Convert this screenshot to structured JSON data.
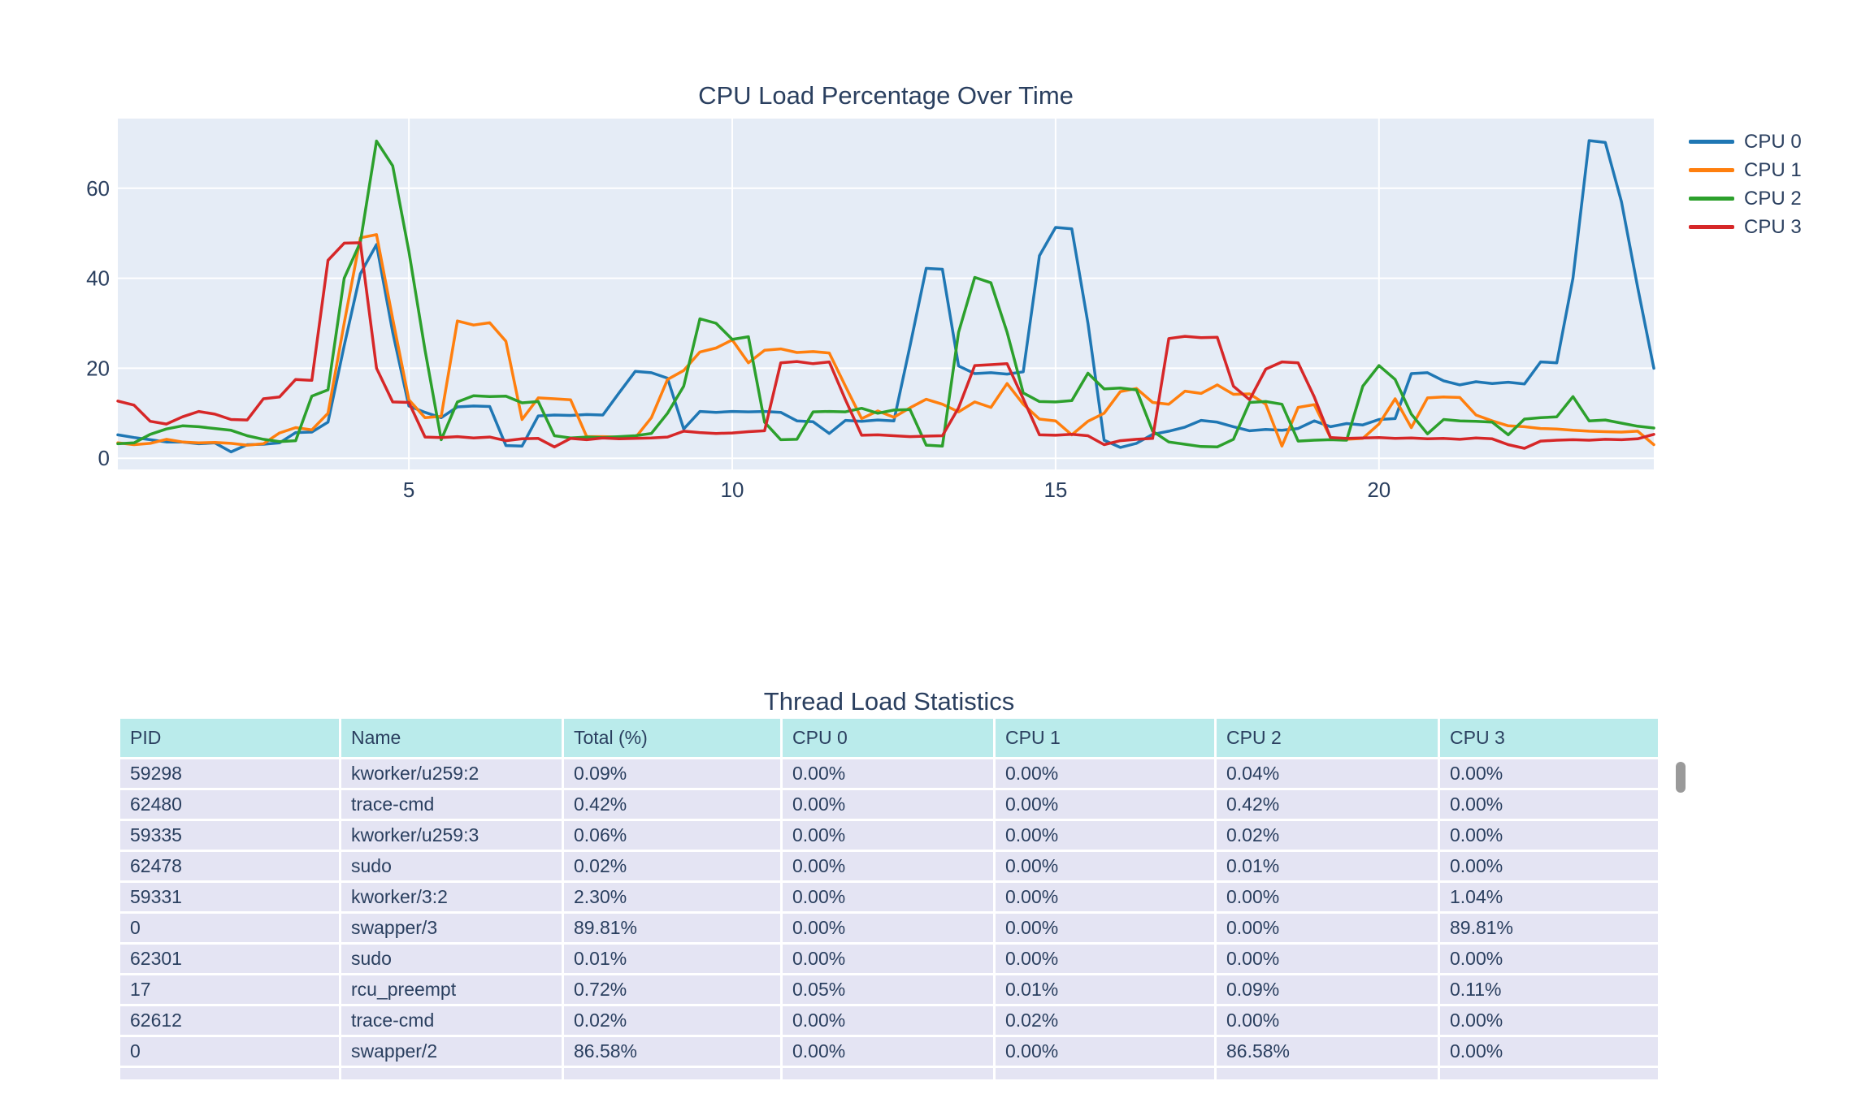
{
  "colors": {
    "text": "#2a3f5f",
    "plot_bg": "#e5ecf6",
    "grid": "#ffffff",
    "table_header_bg": "#baebeb",
    "table_cell_bg": "#e4e4f3",
    "scrollbar": "#9a9a9a",
    "cpu0": "#1f77b4",
    "cpu1": "#ff7f0e",
    "cpu2": "#2ca02c",
    "cpu3": "#d62728"
  },
  "chart_data": [
    {
      "type": "line",
      "title": "CPU Load Percentage Over Time",
      "xlabel": "",
      "ylabel": "",
      "xlim": [
        0.5,
        24.25
      ],
      "ylim": [
        -2.5,
        75.5
      ],
      "xticks": [
        "5",
        "10",
        "15",
        "20"
      ],
      "xtick_values": [
        5,
        10,
        15,
        20
      ],
      "yticks": [
        "0",
        "20",
        "40",
        "60"
      ],
      "ytick_values": [
        0,
        20,
        40,
        60
      ],
      "grid": true,
      "legend_position": "right",
      "x": [
        0.5,
        0.75,
        1,
        1.25,
        1.5,
        1.75,
        2,
        2.25,
        2.5,
        2.75,
        3,
        3.25,
        3.5,
        3.75,
        4,
        4.25,
        4.5,
        4.75,
        5,
        5.25,
        5.5,
        5.75,
        6,
        6.25,
        6.5,
        6.75,
        7,
        7.25,
        7.5,
        7.75,
        8,
        8.25,
        8.5,
        8.75,
        9,
        9.25,
        9.5,
        9.75,
        10,
        10.25,
        10.5,
        10.75,
        11,
        11.25,
        11.5,
        11.75,
        12,
        12.25,
        12.5,
        12.75,
        13,
        13.25,
        13.5,
        13.75,
        14,
        14.25,
        14.5,
        14.75,
        15,
        15.25,
        15.5,
        15.75,
        16,
        16.25,
        16.5,
        16.75,
        17,
        17.25,
        17.5,
        17.75,
        18,
        18.25,
        18.5,
        18.75,
        19,
        19.25,
        19.5,
        19.75,
        20,
        20.25,
        20.5,
        20.75,
        21,
        21.25,
        21.5,
        21.75,
        22,
        22.25,
        22.5,
        22.75,
        23,
        23.25,
        23.5,
        23.75,
        24,
        24.25
      ],
      "series": [
        {
          "name": "CPU 0",
          "color": "#1f77b4",
          "values": [
            5.2,
            4.6,
            4.1,
            3.6,
            3.6,
            3.2,
            3.4,
            1.4,
            3,
            3.1,
            3.4,
            5.7,
            5.8,
            8,
            25,
            41,
            47.5,
            28,
            11.6,
            10.2,
            9,
            11.4,
            11.6,
            11.5,
            2.8,
            2.7,
            9.4,
            9.6,
            9.5,
            9.7,
            9.6,
            14.5,
            19.3,
            19,
            17.8,
            6.5,
            10.4,
            10.2,
            10.4,
            10.3,
            10.4,
            10.2,
            8.3,
            8.1,
            5.5,
            8.4,
            8.2,
            8.5,
            8.3,
            25,
            42.2,
            42,
            20.5,
            18.8,
            19,
            18.7,
            19.2,
            45,
            51.3,
            51,
            30,
            4,
            2.4,
            3.3,
            5.3,
            6,
            6.9,
            8.4,
            8,
            7,
            6.1,
            6.4,
            6.2,
            6.6,
            8.3,
            7,
            7.7,
            7.4,
            8.6,
            8.8,
            18.8,
            19,
            17.2,
            16.3,
            17,
            16.6,
            16.9,
            16.5,
            21.4,
            21.2,
            40,
            70.6,
            70.2,
            57,
            38,
            20
          ]
        },
        {
          "name": "CPU 1",
          "color": "#ff7f0e",
          "values": [
            3.4,
            3,
            3.3,
            4.2,
            3.6,
            3.4,
            3.5,
            3.3,
            2.9,
            3.2,
            5.6,
            6.8,
            6.3,
            10,
            30,
            49,
            49.7,
            31,
            13,
            9,
            9.3,
            30.5,
            29.6,
            30.1,
            26,
            8.6,
            13.4,
            13.2,
            13,
            4.8,
            4.8,
            4.7,
            4.5,
            9,
            17.5,
            19.5,
            23.6,
            24.5,
            26.3,
            21.2,
            24,
            24.3,
            23.5,
            23.7,
            23.4,
            16,
            8.8,
            10.5,
            9.1,
            11.2,
            13.1,
            12,
            10.3,
            12.5,
            11.3,
            16.6,
            12,
            8.7,
            8.3,
            5.2,
            8.2,
            10,
            14.8,
            15.5,
            12.4,
            12,
            14.9,
            14.4,
            16.3,
            14.2,
            14.3,
            12,
            2.7,
            11.3,
            11.9,
            4.6,
            4.2,
            4.4,
            7.6,
            13.2,
            6.8,
            13.4,
            13.6,
            13.5,
            9.6,
            8.3,
            7.2,
            7,
            6.6,
            6.5,
            6.2,
            6,
            5.9,
            5.8,
            6,
            3
          ]
        },
        {
          "name": "CPU 2",
          "color": "#2ca02c",
          "values": [
            3.2,
            3.4,
            5.3,
            6.5,
            7.2,
            7,
            6.6,
            6.2,
            5,
            4.2,
            3.7,
            3.9,
            13.8,
            15.2,
            40,
            48,
            70.5,
            65,
            46,
            24,
            4.1,
            12.5,
            13.9,
            13.7,
            13.8,
            12.3,
            12.6,
            5,
            4.5,
            4.7,
            4.6,
            4.8,
            5,
            5.5,
            10,
            16,
            31,
            30,
            26.4,
            27,
            8,
            4.1,
            4.2,
            10.3,
            10.4,
            10.3,
            11.1,
            10,
            10.7,
            10.8,
            2.9,
            2.7,
            28,
            40.2,
            39,
            28,
            14.5,
            12.6,
            12.5,
            12.8,
            18.9,
            15.4,
            15.6,
            15.2,
            6,
            3.6,
            3.1,
            2.6,
            2.5,
            4.2,
            12.4,
            12.6,
            12,
            3.8,
            4,
            4.1,
            4,
            16,
            20.6,
            17.5,
            9.8,
            5.4,
            8.6,
            8.3,
            8.2,
            8,
            5.2,
            8.7,
            9,
            9.2,
            13.7,
            8.3,
            8.5,
            7.8,
            7.1,
            6.7
          ]
        },
        {
          "name": "CPU 3",
          "color": "#d62728",
          "values": [
            12.7,
            11.8,
            8.2,
            7.6,
            9.2,
            10.4,
            9.8,
            8.6,
            8.5,
            13.2,
            13.6,
            17.5,
            17.3,
            44,
            47.8,
            47.9,
            20,
            12.5,
            12.4,
            4.7,
            4.6,
            4.8,
            4.5,
            4.7,
            3.9,
            4.3,
            4.4,
            2.5,
            4.4,
            4.1,
            4.5,
            4.3,
            4.4,
            4.5,
            4.7,
            6,
            5.7,
            5.5,
            5.6,
            5.9,
            6.1,
            21.2,
            21.5,
            21,
            21.4,
            13,
            5.1,
            5.2,
            5,
            4.8,
            4.9,
            5,
            11.2,
            20.6,
            20.8,
            21,
            13.2,
            5.2,
            5.1,
            5.3,
            5,
            3,
            3.9,
            4.2,
            4.4,
            26.6,
            27.1,
            26.8,
            26.9,
            16,
            13,
            19.8,
            21.4,
            21.2,
            13.6,
            4.6,
            4.4,
            4.5,
            4.6,
            4.4,
            4.5,
            4.3,
            4.4,
            4.2,
            4.5,
            4.3,
            3,
            2.2,
            3.8,
            4,
            4.1,
            4,
            4.2,
            4.1,
            4.3,
            5.3
          ]
        }
      ]
    },
    {
      "type": "table",
      "title": "Thread Load Statistics",
      "columns": [
        "PID",
        "Name",
        "Total (%)",
        "CPU 0",
        "CPU 1",
        "CPU 2",
        "CPU 3"
      ],
      "rows": [
        [
          "59298",
          "kworker/u259:2",
          "0.09%",
          "0.00%",
          "0.00%",
          "0.04%",
          "0.00%"
        ],
        [
          "62480",
          "trace-cmd",
          "0.42%",
          "0.00%",
          "0.00%",
          "0.42%",
          "0.00%"
        ],
        [
          "59335",
          "kworker/u259:3",
          "0.06%",
          "0.00%",
          "0.00%",
          "0.02%",
          "0.00%"
        ],
        [
          "62478",
          "sudo",
          "0.02%",
          "0.00%",
          "0.00%",
          "0.01%",
          "0.00%"
        ],
        [
          "59331",
          "kworker/3:2",
          "2.30%",
          "0.00%",
          "0.00%",
          "0.00%",
          "1.04%"
        ],
        [
          "0",
          "swapper/3",
          "89.81%",
          "0.00%",
          "0.00%",
          "0.00%",
          "89.81%"
        ],
        [
          "62301",
          "sudo",
          "0.01%",
          "0.00%",
          "0.00%",
          "0.00%",
          "0.00%"
        ],
        [
          "17",
          "rcu_preempt",
          "0.72%",
          "0.05%",
          "0.01%",
          "0.09%",
          "0.11%"
        ],
        [
          "62612",
          "trace-cmd",
          "0.02%",
          "0.00%",
          "0.02%",
          "0.00%",
          "0.00%"
        ],
        [
          "0",
          "swapper/2",
          "86.58%",
          "0.00%",
          "0.00%",
          "86.58%",
          "0.00%"
        ]
      ]
    }
  ]
}
